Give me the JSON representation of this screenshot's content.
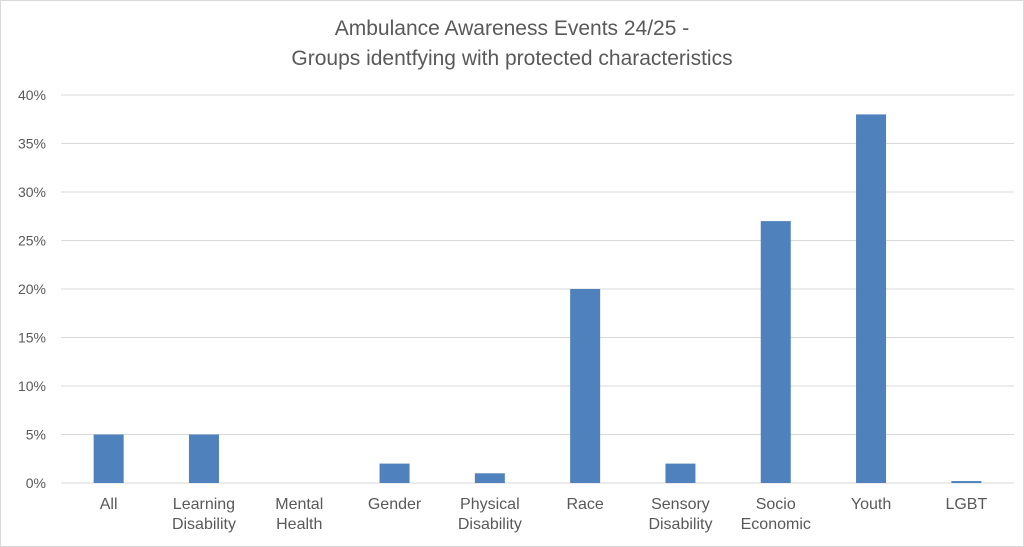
{
  "colors": {
    "bar": "#4f81bd",
    "grid": "#d9d9d9",
    "text": "#595959",
    "border": "#d9d9d9"
  },
  "chart_data": {
    "type": "bar",
    "title_lines": [
      "Ambulance Awareness Events 24/25 -",
      "Groups identfying with protected characteristics"
    ],
    "xlabel": "",
    "ylabel": "",
    "categories": [
      [
        "All"
      ],
      [
        "Learning",
        "Disability"
      ],
      [
        "Mental",
        "Health"
      ],
      [
        "Gender"
      ],
      [
        "Physical",
        "Disability"
      ],
      [
        "Race"
      ],
      [
        "Sensory",
        "Disability"
      ],
      [
        "Socio",
        "Economic"
      ],
      [
        "Youth"
      ],
      [
        "LGBT"
      ]
    ],
    "values": [
      0.05,
      0.05,
      0,
      0.02,
      0.01,
      0.2,
      0.02,
      0.27,
      0.38,
      0.002
    ],
    "ylim": [
      0,
      0.4
    ],
    "yticks": [
      0,
      0.05,
      0.1,
      0.15,
      0.2,
      0.25,
      0.3,
      0.35,
      0.4
    ],
    "ytick_labels": [
      "0%",
      "5%",
      "10%",
      "15%",
      "20%",
      "25%",
      "30%",
      "35%",
      "40%"
    ],
    "grid": true,
    "legend": "none"
  }
}
